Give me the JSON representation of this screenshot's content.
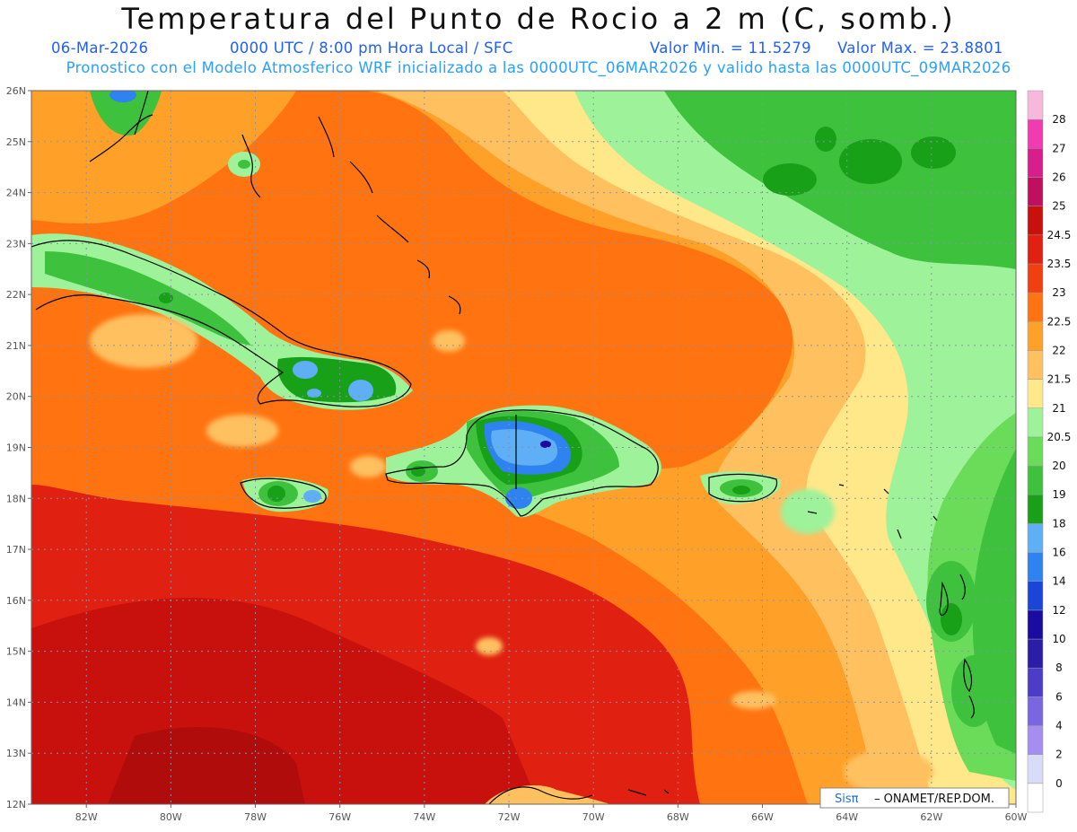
{
  "header": {
    "title": "Temperatura del Punto de Rocio a 2 m (C, somb.)",
    "date": "06-Mar-2026",
    "time_info": "0000 UTC / 8:00 pm Hora Local / SFC",
    "min_label": "Valor Min. = 11.5279",
    "max_label": "Valor Max. = 23.8801",
    "subtitle": "Pronostico con el Modelo Atmosferico WRF inicializado a las 0000UTC_06MAR2026 y valido hasta las  0000UTC_09MAR2026"
  },
  "map": {
    "lon_labels": [
      "82W",
      "80W",
      "78W",
      "76W",
      "74W",
      "72W",
      "70W",
      "68W",
      "66W",
      "64W",
      "62W",
      "60W"
    ],
    "lat_labels": [
      "26N",
      "25N",
      "24N",
      "23N",
      "22N",
      "21N",
      "20N",
      "19N",
      "18N",
      "17N",
      "16N",
      "15N",
      "14N",
      "13N",
      "12N"
    ],
    "lon_range": [
      -83.3,
      -60
    ],
    "lat_range": [
      12,
      26
    ],
    "grid": true
  },
  "colorbar": {
    "levels": [
      "0",
      "2",
      "4",
      "6",
      "8",
      "10",
      "12",
      "14",
      "16",
      "18",
      "19",
      "20",
      "20.5",
      "21",
      "21.5",
      "22",
      "22.5",
      "23",
      "23.5",
      "24.5",
      "25",
      "26",
      "27",
      "28"
    ],
    "colors": [
      "#ffffff",
      "#d8dcf8",
      "#a58ef0",
      "#7a66e0",
      "#4d3cc8",
      "#2b1da8",
      "#1a0ca0",
      "#1a46d8",
      "#2f83f0",
      "#5eaff6",
      "#18a018",
      "#3ec23e",
      "#6adc5a",
      "#9ef29a",
      "#ffe88a",
      "#ffc060",
      "#ffa028",
      "#ff7410",
      "#f04010",
      "#e02010",
      "#c8100c",
      "#c00f5e",
      "#d81d8c",
      "#f03cb0",
      "#f7b8dc"
    ]
  },
  "credit": {
    "brand": "Sisπ",
    "text": "– ONAMET/REP.DOM."
  },
  "colors": {
    "title": "#111111",
    "meta_blue": "#1f5fff",
    "sub_blue": "#2aa0ff",
    "grid": "#8a8fb0",
    "coast": "#000000"
  }
}
